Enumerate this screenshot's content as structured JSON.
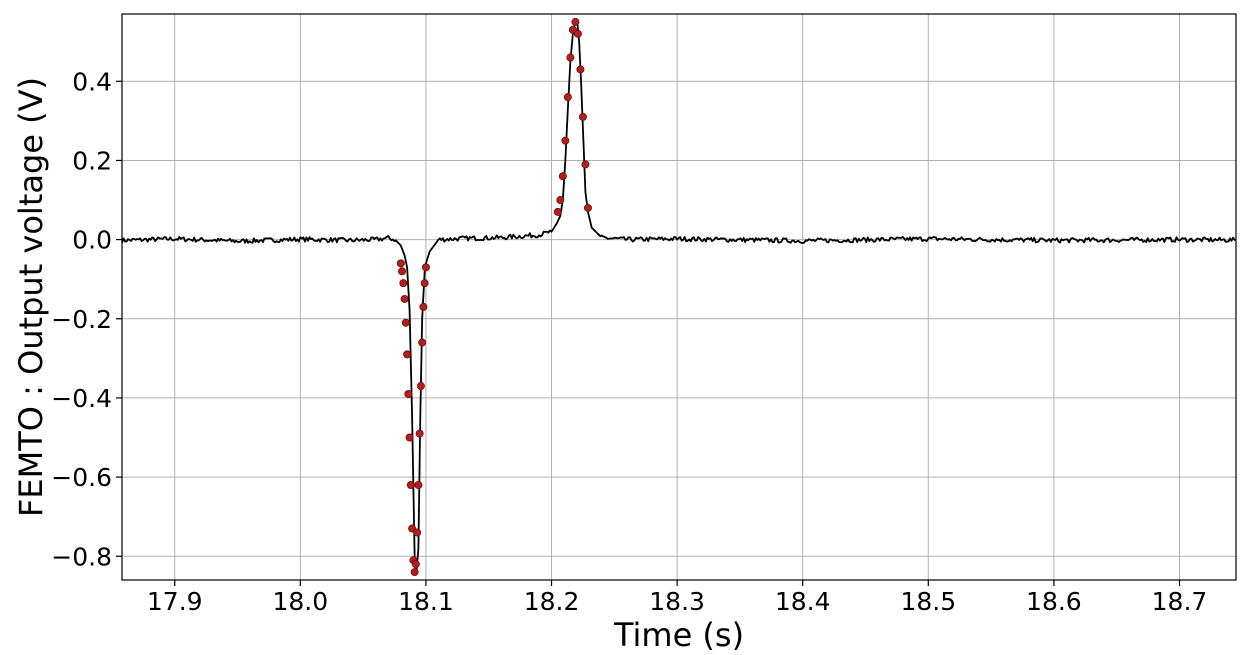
{
  "chart_data": {
    "type": "line",
    "title": "",
    "xlabel": "Time (s)",
    "ylabel": "FEMTO : Output voltage (V)",
    "xlim": [
      17.858,
      18.745
    ],
    "ylim": [
      -0.86,
      0.57
    ],
    "grid": true,
    "legend": "none",
    "x_ticks": [
      17.9,
      18.0,
      18.1,
      18.2,
      18.3,
      18.4,
      18.5,
      18.6,
      18.7
    ],
    "x_tick_labels": [
      "17.9",
      "18.0",
      "18.1",
      "18.2",
      "18.3",
      "18.4",
      "18.5",
      "18.6",
      "18.7"
    ],
    "y_ticks": [
      0.4,
      0.2,
      0.0,
      -0.2,
      -0.4,
      -0.6,
      -0.8
    ],
    "y_tick_labels": [
      "0.4",
      "0.2",
      "0.0",
      "−0.2",
      "−0.4",
      "−0.6",
      "−0.8"
    ],
    "series": [
      {
        "style": "line",
        "color": "#000000",
        "x": [
          17.858,
          17.9,
          17.95,
          18.0,
          18.04,
          18.06,
          18.07,
          18.075,
          18.08,
          18.083,
          18.085,
          18.087,
          18.089,
          18.091,
          18.0925,
          18.094,
          18.0955,
          18.097,
          18.099,
          18.1,
          18.103,
          18.11,
          18.13,
          18.16,
          18.19,
          18.2,
          18.204,
          18.207,
          18.209,
          18.211,
          18.213,
          18.215,
          18.217,
          18.219,
          18.2205,
          18.222,
          18.2235,
          18.225,
          18.227,
          18.229,
          18.232,
          18.24,
          18.26,
          18.3,
          18.4,
          18.5,
          18.6,
          18.7,
          18.745
        ],
        "y": [
          -0.002,
          0.002,
          -0.004,
          0.001,
          -0.002,
          0.0,
          0.004,
          0.0,
          -0.015,
          -0.04,
          -0.07,
          -0.18,
          -0.45,
          -0.8,
          -0.84,
          -0.78,
          -0.45,
          -0.2,
          -0.08,
          -0.06,
          -0.03,
          0.0,
          0.003,
          0.005,
          0.012,
          0.02,
          0.04,
          0.06,
          0.1,
          0.2,
          0.33,
          0.45,
          0.52,
          0.55,
          0.55,
          0.5,
          0.4,
          0.28,
          0.12,
          0.07,
          0.03,
          0.005,
          0.0,
          0.002,
          -0.003,
          0.002,
          -0.002,
          0.0,
          -0.001
        ]
      },
      {
        "style": "markers",
        "color": "#b41e1e",
        "x": [
          18.08,
          18.081,
          18.082,
          18.083,
          18.084,
          18.085,
          18.086,
          18.087,
          18.088,
          18.089,
          18.09,
          18.091,
          18.092,
          18.093,
          18.094,
          18.095,
          18.096,
          18.097,
          18.098,
          18.099,
          18.1
        ],
        "y": [
          -0.06,
          -0.08,
          -0.11,
          -0.15,
          -0.21,
          -0.29,
          -0.39,
          -0.5,
          -0.62,
          -0.73,
          -0.81,
          -0.84,
          -0.82,
          -0.74,
          -0.62,
          -0.49,
          -0.37,
          -0.26,
          -0.17,
          -0.11,
          -0.07
        ]
      },
      {
        "style": "markers",
        "color": "#b41e1e",
        "x": [
          18.205,
          18.207,
          18.209,
          18.211,
          18.213,
          18.215,
          18.217,
          18.219,
          18.221,
          18.223,
          18.225,
          18.227,
          18.229
        ],
        "y": [
          0.07,
          0.1,
          0.16,
          0.25,
          0.36,
          0.46,
          0.53,
          0.55,
          0.52,
          0.43,
          0.31,
          0.19,
          0.08
        ]
      }
    ]
  }
}
